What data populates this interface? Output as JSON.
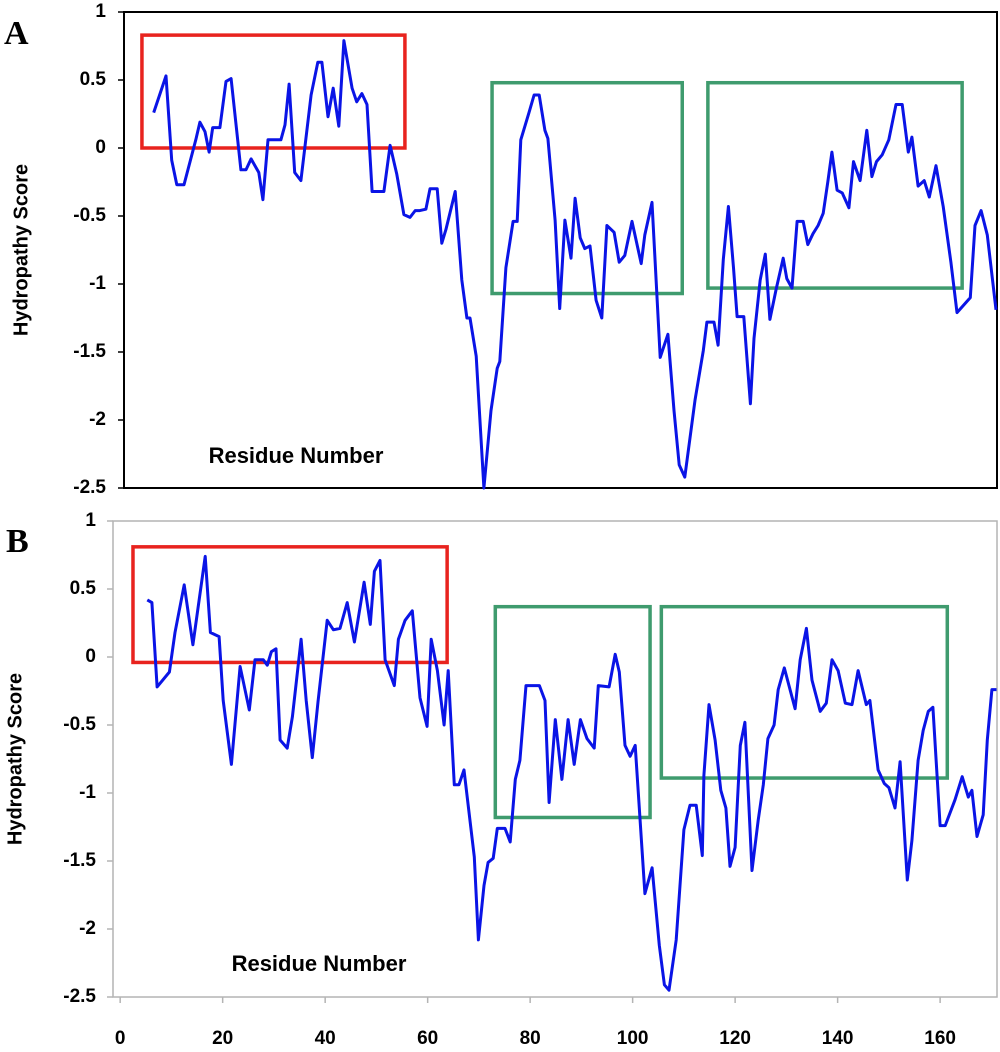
{
  "chart_data": [
    {
      "type": "line",
      "label": "A",
      "ylabel": "Hydropathy Score",
      "xlabel": "Residue Number",
      "xlim": [
        0.8,
        171.1
      ],
      "ylim": [
        -2.5,
        1
      ],
      "yticks": [
        1,
        0.5,
        0,
        -0.5,
        -1,
        -1.5,
        -2,
        -2.5
      ],
      "frame_color": "#000000",
      "x": [
        6.6,
        9,
        10.1,
        11.1,
        12.5,
        14.8,
        15.6,
        16.6,
        17.4,
        18.1,
        19.5,
        20.7,
        21.7,
        23.6,
        24.6,
        25.6,
        27.1,
        27.9,
        28.9,
        31.4,
        32.2,
        33,
        34.1,
        35.3,
        37.3,
        38.6,
        39.4,
        40.6,
        41.6,
        42.7,
        43.7,
        45.3,
        46.2,
        47.2,
        48.2,
        49.2,
        51.5,
        52.7,
        54,
        55.4,
        56.6,
        57.6,
        58.5,
        59.7,
        60.5,
        61.9,
        62.8,
        63.6,
        65.4,
        66.7,
        67.7,
        68.3,
        69.5,
        71,
        72.4,
        73.6,
        74.1,
        75.3,
        76.7,
        77.5,
        78.2,
        79.8,
        80.8,
        81.8,
        82.9,
        83.5,
        84.9,
        85.8,
        86.8,
        88,
        88.8,
        89.8,
        90.7,
        91.7,
        92.9,
        94,
        95,
        96.4,
        97.4,
        98.5,
        99.9,
        101.7,
        102.4,
        103.8,
        105.4,
        106.9,
        108.1,
        109.1,
        110.2,
        112.2,
        113.8,
        114.5,
        115.9,
        116.7,
        117.7,
        118.7,
        119.7,
        120.4,
        121.7,
        123,
        123.7,
        124.9,
        125.9,
        126.8,
        128,
        129.4,
        130.1,
        131.1,
        132.1,
        133.3,
        134.2,
        135.2,
        136.2,
        137.2,
        138.1,
        138.9,
        139.9,
        140.9,
        142.2,
        143.1,
        144.4,
        145.7,
        146.7,
        147.6,
        148.7,
        150,
        151.4,
        152.6,
        153.8,
        154.5,
        155.7,
        156.9,
        157.9,
        159.2,
        160.6,
        162.1,
        163.3,
        165.9,
        166.8,
        168,
        169.2,
        170.9
      ],
      "series": [
        {
          "color": "#0a14e6",
          "values": [
            0.26,
            0.53,
            -0.09,
            -0.27,
            -0.27,
            0.06,
            0.19,
            0.12,
            -0.03,
            0.15,
            0.15,
            0.49,
            0.51,
            -0.16,
            -0.16,
            -0.08,
            -0.18,
            -0.38,
            0.06,
            0.06,
            0.17,
            0.47,
            -0.18,
            -0.24,
            0.39,
            0.63,
            0.63,
            0.23,
            0.44,
            0.16,
            0.79,
            0.44,
            0.34,
            0.4,
            0.32,
            -0.32,
            -0.32,
            0.02,
            -0.19,
            -0.49,
            -0.51,
            -0.46,
            -0.46,
            -0.45,
            -0.3,
            -0.3,
            -0.7,
            -0.6,
            -0.32,
            -0.97,
            -1.25,
            -1.25,
            -1.53,
            -2.5,
            -1.93,
            -1.62,
            -1.57,
            -0.88,
            -0.54,
            -0.54,
            0.06,
            0.26,
            0.39,
            0.39,
            0.13,
            0.07,
            -0.53,
            -1.18,
            -0.53,
            -0.81,
            -0.37,
            -0.66,
            -0.74,
            -0.72,
            -1.12,
            -1.25,
            -0.57,
            -0.62,
            -0.84,
            -0.79,
            -0.54,
            -0.85,
            -0.64,
            -0.4,
            -1.54,
            -1.37,
            -1.93,
            -2.33,
            -2.42,
            -1.85,
            -1.49,
            -1.28,
            -1.28,
            -1.45,
            -0.82,
            -0.43,
            -0.88,
            -1.24,
            -1.24,
            -1.88,
            -1.4,
            -0.97,
            -0.78,
            -1.26,
            -1.04,
            -0.81,
            -0.96,
            -1.03,
            -0.54,
            -0.54,
            -0.71,
            -0.63,
            -0.57,
            -0.48,
            -0.25,
            -0.03,
            -0.31,
            -0.33,
            -0.44,
            -0.1,
            -0.24,
            0.13,
            -0.21,
            -0.1,
            -0.05,
            0.06,
            0.32,
            0.32,
            -0.03,
            0.08,
            -0.28,
            -0.24,
            -0.36,
            -0.13,
            -0.43,
            -0.84,
            -1.21,
            -1.1,
            -0.57,
            -0.46,
            -0.64,
            -1.19
          ]
        }
      ],
      "regions": [
        {
          "x": [
            4.3,
            55.6
          ],
          "y": [
            0,
            0.83
          ],
          "color": "#e8231e"
        },
        {
          "x": [
            72.6,
            109.7
          ],
          "y": [
            -1.07,
            0.48
          ],
          "color": "#3f9b6e"
        },
        {
          "x": [
            114.7,
            164.3
          ],
          "y": [
            -1.03,
            0.48
          ],
          "color": "#3f9b6e"
        }
      ]
    },
    {
      "type": "line",
      "label": "B",
      "ylabel": "Hydropathy Score",
      "xlabel": "Residue Number",
      "xlim": [
        -1.4,
        171.1
      ],
      "ylim": [
        -2.5,
        1
      ],
      "yticks": [
        1,
        0.5,
        0,
        -0.5,
        -1,
        -1.5,
        -2,
        -2.5
      ],
      "xticks": [
        0,
        20,
        40,
        60,
        80,
        100,
        120,
        140,
        160
      ],
      "frame_color": "#b4b4b4",
      "x": [
        5.3,
        6.2,
        7.2,
        9.6,
        10.7,
        12.5,
        14.2,
        16.6,
        17.6,
        19.3,
        20.1,
        21.7,
        23.4,
        25.2,
        26.3,
        27.9,
        28.7,
        29.5,
        30.4,
        31.2,
        32.6,
        33.6,
        35.3,
        36.3,
        37.5,
        38.6,
        40.4,
        41.6,
        42.9,
        44.3,
        45.7,
        47.6,
        48.8,
        49.6,
        50.7,
        51.7,
        53.5,
        54.3,
        55.6,
        57,
        58.5,
        59.9,
        60.7,
        61.9,
        63.2,
        64,
        65.2,
        66.1,
        67.1,
        69.1,
        69.9,
        71,
        71.8,
        72.8,
        73.6,
        75.1,
        76.1,
        77.1,
        78,
        79.2,
        81.8,
        82.9,
        83.7,
        84.9,
        86.2,
        87.4,
        88.6,
        89.8,
        91.1,
        92.5,
        93.3,
        95.4,
        96.6,
        97.4,
        98.5,
        99.5,
        100.5,
        102.4,
        103.8,
        105.2,
        106.2,
        107.1,
        108.5,
        110,
        111.2,
        112.4,
        113.6,
        113.9,
        114.9,
        116.1,
        117.2,
        118.2,
        119,
        120,
        121,
        121.9,
        123.3,
        124.5,
        125.5,
        126.4,
        127.6,
        128.4,
        129.6,
        131.7,
        132.7,
        133.9,
        135,
        136.6,
        137.8,
        138.9,
        140.1,
        141.5,
        142.8,
        144,
        145.6,
        146.3,
        147.9,
        149.1,
        150,
        151.2,
        152.2,
        153.6,
        154.5,
        155.7,
        156.7,
        157.7,
        158.6,
        160,
        161,
        162.9,
        164.3,
        165.5,
        166.2,
        167.2,
        168.4,
        169.2,
        170.1,
        171
      ],
      "series": [
        {
          "color": "#0a14e6",
          "values": [
            0.42,
            0.4,
            -0.22,
            -0.11,
            0.18,
            0.53,
            0.09,
            0.74,
            0.18,
            0.15,
            -0.32,
            -0.79,
            -0.07,
            -0.39,
            -0.02,
            -0.02,
            -0.06,
            0.04,
            0.06,
            -0.61,
            -0.67,
            -0.44,
            0.13,
            -0.32,
            -0.74,
            -0.33,
            0.27,
            0.2,
            0.21,
            0.4,
            0.11,
            0.55,
            0.24,
            0.63,
            0.71,
            -0.02,
            -0.21,
            0.13,
            0.27,
            0.34,
            -0.3,
            -0.51,
            0.13,
            -0.1,
            -0.5,
            -0.1,
            -0.94,
            -0.94,
            -0.83,
            -1.47,
            -2.08,
            -1.68,
            -1.51,
            -1.48,
            -1.26,
            -1.26,
            -1.36,
            -0.9,
            -0.76,
            -0.21,
            -0.21,
            -0.32,
            -1.07,
            -0.46,
            -0.9,
            -0.46,
            -0.79,
            -0.46,
            -0.6,
            -0.67,
            -0.21,
            -0.22,
            0.02,
            -0.11,
            -0.65,
            -0.73,
            -0.65,
            -1.74,
            -1.55,
            -2.12,
            -2.41,
            -2.45,
            -2.08,
            -1.27,
            -1.09,
            -1.09,
            -1.46,
            -0.87,
            -0.35,
            -0.61,
            -0.98,
            -1.11,
            -1.54,
            -1.4,
            -0.65,
            -0.48,
            -1.57,
            -1.2,
            -0.94,
            -0.6,
            -0.5,
            -0.24,
            -0.08,
            -0.38,
            -0.02,
            0.21,
            -0.17,
            -0.4,
            -0.34,
            -0.02,
            -0.1,
            -0.34,
            -0.35,
            -0.1,
            -0.35,
            -0.32,
            -0.83,
            -0.93,
            -0.96,
            -1.11,
            -0.77,
            -1.64,
            -1.35,
            -0.76,
            -0.54,
            -0.4,
            -0.37,
            -1.24,
            -1.24,
            -1.05,
            -0.88,
            -1.03,
            -0.98,
            -1.32,
            -1.16,
            -0.61,
            -0.24,
            -0.24
          ]
        }
      ],
      "regions": [
        {
          "x": [
            2.5,
            63.8
          ],
          "y": [
            -0.04,
            0.81
          ],
          "color": "#e8231e"
        },
        {
          "x": [
            73.2,
            103.4
          ],
          "y": [
            -1.18,
            0.37
          ],
          "color": "#3f9b6e"
        },
        {
          "x": [
            105.6,
            161.4
          ],
          "y": [
            -0.89,
            0.37
          ],
          "color": "#3f9b6e"
        }
      ]
    }
  ]
}
